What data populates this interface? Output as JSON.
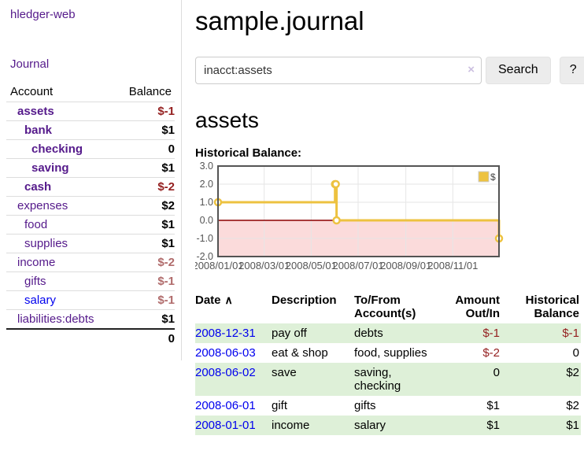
{
  "app": {
    "brand": "hledger-web",
    "nav_journal": "Journal"
  },
  "sidebar": {
    "header": {
      "account": "Account",
      "balance": "Balance"
    },
    "accounts": [
      {
        "name": "assets",
        "balance": "$-1"
      },
      {
        "name": "bank",
        "balance": "$1"
      },
      {
        "name": "checking",
        "balance": "0"
      },
      {
        "name": "saving",
        "balance": "$1"
      },
      {
        "name": "cash",
        "balance": "$-2"
      },
      {
        "name": "expenses",
        "balance": "$2"
      },
      {
        "name": "food",
        "balance": "$1"
      },
      {
        "name": "supplies",
        "balance": "$1"
      },
      {
        "name": "income",
        "balance": "$-2"
      },
      {
        "name": "gifts",
        "balance": "$-1"
      },
      {
        "name": "salary",
        "balance": "$-1"
      },
      {
        "name": "liabilities:debts",
        "balance": "$1"
      }
    ],
    "total": "0"
  },
  "header": {
    "title": "sample.journal"
  },
  "search": {
    "value": "inacct:assets",
    "clear_icon": "×",
    "button_label": "Search",
    "help_label": "?"
  },
  "account_page": {
    "title": "assets",
    "chart_label": "Historical Balance:"
  },
  "chart_data": {
    "type": "line",
    "step": true,
    "title": "Historical Balance:",
    "series": [
      {
        "name": "$",
        "color": "#edc240",
        "points": [
          [
            "2008-01-01",
            1
          ],
          [
            "2008-06-01",
            2
          ],
          [
            "2008-06-02",
            2
          ],
          [
            "2008-06-03",
            0
          ],
          [
            "2008-12-31",
            -1
          ]
        ]
      }
    ],
    "xlim": [
      "2008-01-01",
      "2008-12-31"
    ],
    "ylim": [
      -2,
      3
    ],
    "x_ticks": [
      "2008/01/01",
      "2008/03/01",
      "2008/05/01",
      "2008/07/01",
      "2008/09/01",
      "2008/11/01"
    ],
    "y_ticks": [
      3.0,
      2.0,
      1.0,
      0.0,
      -1.0,
      -2.0
    ],
    "grid": true,
    "legend": {
      "label": "$",
      "position": "top-right"
    },
    "colors": {
      "negative_region": "#fbdbdb",
      "zero_line": "#8b0000",
      "grid_line": "#e6e6e6",
      "border": "#545454",
      "tick_text": "#545454"
    }
  },
  "register": {
    "headers": {
      "date": "Date",
      "sort_icon": "∧",
      "description": "Description",
      "accounts": "To/From Account(s)",
      "amount": "Amount Out/In",
      "balance": "Historical Balance"
    },
    "rows": [
      {
        "date": "2008-12-31",
        "description": "pay off",
        "accounts": "debts",
        "amount": "$-1",
        "balance": "$-1"
      },
      {
        "date": "2008-06-03",
        "description": "eat & shop",
        "accounts": "food, supplies",
        "amount": "$-2",
        "balance": "0"
      },
      {
        "date": "2008-06-02",
        "description": "save",
        "accounts": "saving, checking",
        "amount": "0",
        "balance": "$2"
      },
      {
        "date": "2008-06-01",
        "description": "gift",
        "accounts": "gifts",
        "amount": "$1",
        "balance": "$2"
      },
      {
        "date": "2008-01-01",
        "description": "income",
        "accounts": "salary",
        "amount": "$1",
        "balance": "$1"
      }
    ]
  }
}
